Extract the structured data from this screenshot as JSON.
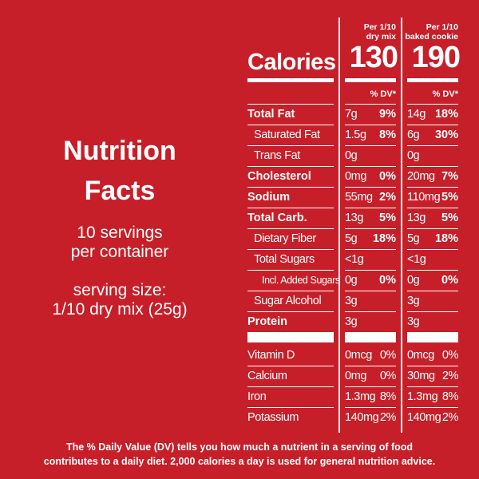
{
  "left": {
    "title_line1": "Nutrition",
    "title_line2": "Facts",
    "servings_line1": "10 servings",
    "servings_line2": "per container",
    "serving_size_line1": "serving size:",
    "serving_size_line2": "1/10 dry mix (25g)"
  },
  "header": {
    "col1_line1": "Per 1/10",
    "col1_line2": "dry mix",
    "col2_line1": "Per 1/10",
    "col2_line2": "baked cookie",
    "calories_label": "Calories",
    "col1_calories": "130",
    "col2_calories": "190",
    "dv_label": "% DV*"
  },
  "rows": [
    {
      "label": "Total Fat",
      "bold": true,
      "indent": 0,
      "c1": "7g",
      "d1": "9%",
      "c2": "14g",
      "d2": "18%"
    },
    {
      "label": "Saturated Fat",
      "bold": false,
      "indent": 1,
      "c1": "1.5g",
      "d1": "8%",
      "c2": "6g",
      "d2": "30%"
    },
    {
      "label": "Trans Fat",
      "bold": false,
      "indent": 1,
      "c1": "0g",
      "d1": "",
      "c2": "0g",
      "d2": ""
    },
    {
      "label": "Cholesterol",
      "bold": true,
      "indent": 0,
      "c1": "0mg",
      "d1": "0%",
      "c2": "20mg",
      "d2": "7%"
    },
    {
      "label": "Sodium",
      "bold": true,
      "indent": 0,
      "c1": "55mg",
      "d1": "2%",
      "c2": "110mg",
      "d2": "5%"
    },
    {
      "label": "Total Carb.",
      "bold": true,
      "indent": 0,
      "c1": "13g",
      "d1": "5%",
      "c2": "13g",
      "d2": "5%"
    },
    {
      "label": "Dietary Fiber",
      "bold": false,
      "indent": 1,
      "c1": "5g",
      "d1": "18%",
      "c2": "5g",
      "d2": "18%"
    },
    {
      "label": "Total Sugars",
      "bold": false,
      "indent": 1,
      "c1": "<1g",
      "d1": "",
      "c2": "<1g",
      "d2": ""
    },
    {
      "label": "Incl. Added Sugars",
      "bold": false,
      "indent": 2,
      "c1": "0g",
      "d1": "0%",
      "c2": "0g",
      "d2": "0%"
    },
    {
      "label": "Sugar Alcohol",
      "bold": false,
      "indent": 1,
      "c1": "3g",
      "d1": "",
      "c2": "3g",
      "d2": ""
    },
    {
      "label": "Protein",
      "bold": true,
      "indent": 0,
      "c1": "3g",
      "d1": "",
      "c2": "3g",
      "d2": ""
    }
  ],
  "vitamins": [
    {
      "label": "Vitamin D",
      "c1": "0mcg",
      "d1": "0%",
      "c2": "0mcg",
      "d2": "0%"
    },
    {
      "label": "Calcium",
      "c1": "0mg",
      "d1": "0%",
      "c2": "30mg",
      "d2": "2%"
    },
    {
      "label": "Iron",
      "c1": "1.3mg",
      "d1": "8%",
      "c2": "1.3mg",
      "d2": "8%"
    },
    {
      "label": "Potassium",
      "c1": "140mg",
      "d1": "2%",
      "c2": "140mg",
      "d2": "2%"
    }
  ],
  "footer": {
    "line1": "The % Daily Value (DV) tells you how much a nutrient in a serving of food",
    "line2": "contributes to a daily diet. 2,000 calories a day is used for general nutrition advice."
  },
  "colors": {
    "background": "#c61f29",
    "text": "#ffffff"
  }
}
